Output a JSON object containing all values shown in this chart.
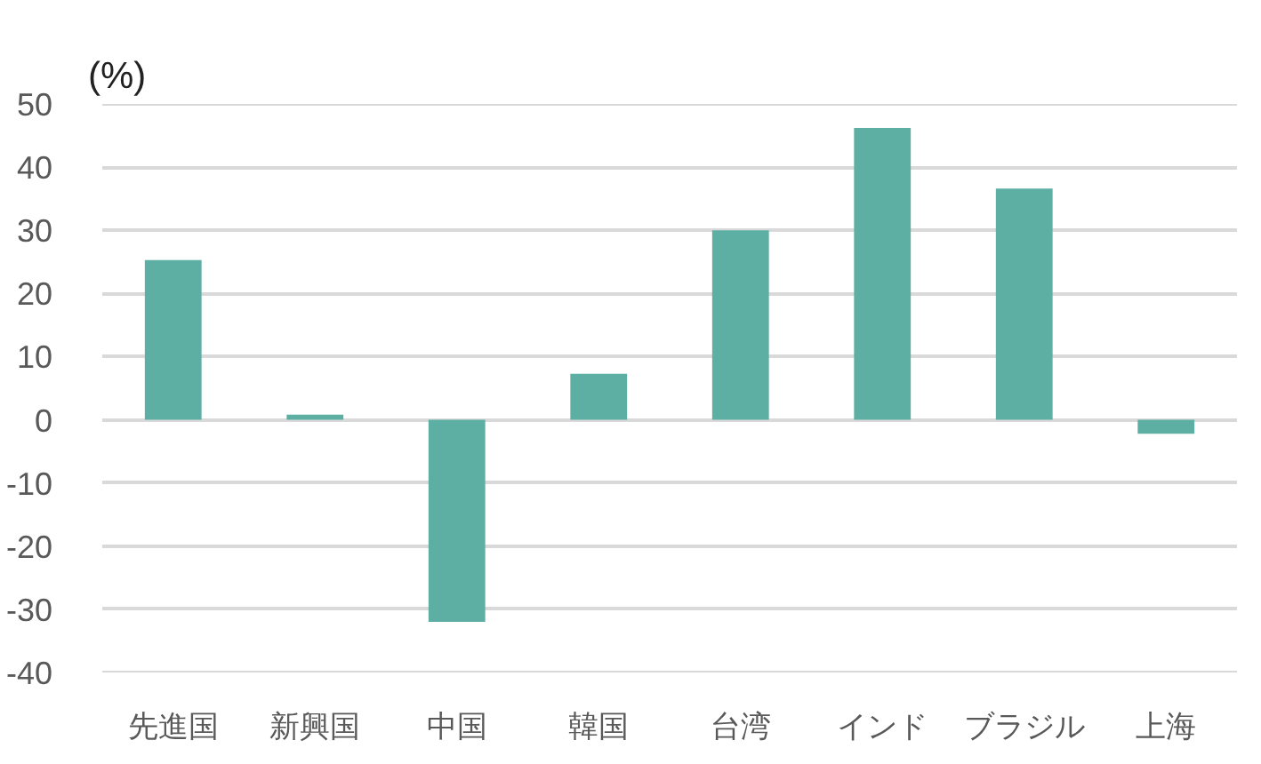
{
  "chart_data": {
    "type": "bar",
    "ylabel": "(%)",
    "categories": [
      "先進国",
      "新興国",
      "中国",
      "韓国",
      "台湾",
      "インド",
      "ブラジル",
      "上海"
    ],
    "values": [
      25.3,
      0.8,
      -32.0,
      7.3,
      30.0,
      46.2,
      36.6,
      -2.2
    ],
    "color": "#5eafa3",
    "ylim": [
      -40,
      50
    ],
    "yticks": [
      -40,
      -30,
      -20,
      -10,
      0,
      10,
      20,
      30,
      40,
      50
    ],
    "grid": "y"
  }
}
